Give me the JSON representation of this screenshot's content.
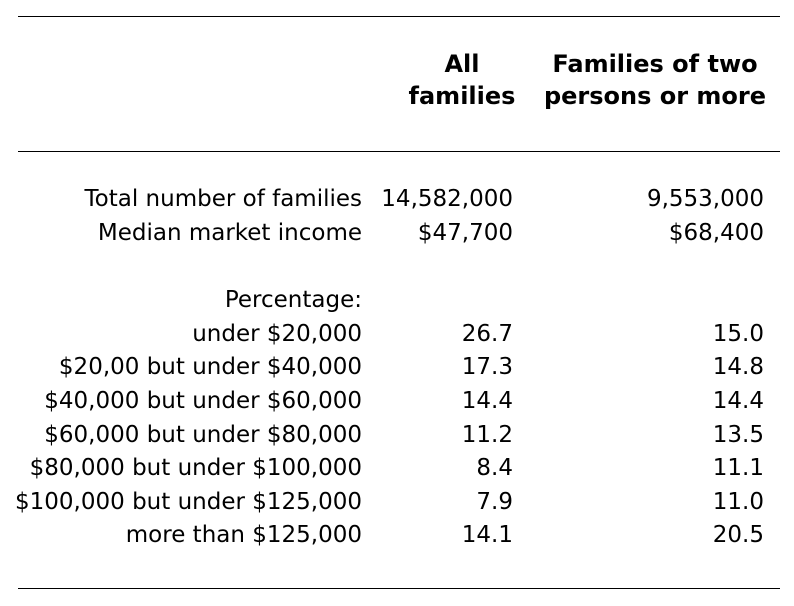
{
  "headers": {
    "all_families_line1": "All",
    "all_families_line2": "families",
    "two_plus_line1": "Families of two",
    "two_plus_line2": "persons or more"
  },
  "summary_rows": [
    {
      "label": "Total number of families",
      "all": "14,582,000",
      "two_plus": "9,553,000"
    },
    {
      "label": "Median market income",
      "all": "$47,700",
      "two_plus": "$68,400"
    }
  ],
  "percentage_label": "Percentage:",
  "percentage_rows": [
    {
      "label": "under $20,000",
      "all": "26.7",
      "two_plus": "15.0"
    },
    {
      "label": "$20,00 but under $40,000",
      "all": "17.3",
      "two_plus": "14.8"
    },
    {
      "label": "$40,000 but under $60,000",
      "all": "14.4",
      "two_plus": "14.4"
    },
    {
      "label": "$60,000 but under $80,000",
      "all": "11.2",
      "two_plus": "13.5"
    },
    {
      "label": "$80,000 but under $100,000",
      "all": "8.4",
      "two_plus": "11.1"
    },
    {
      "label": "$100,000 but under $125,000",
      "all": "7.9",
      "two_plus": "11.0"
    },
    {
      "label": "more than $125,000",
      "all": "14.1",
      "two_plus": "20.5"
    }
  ]
}
